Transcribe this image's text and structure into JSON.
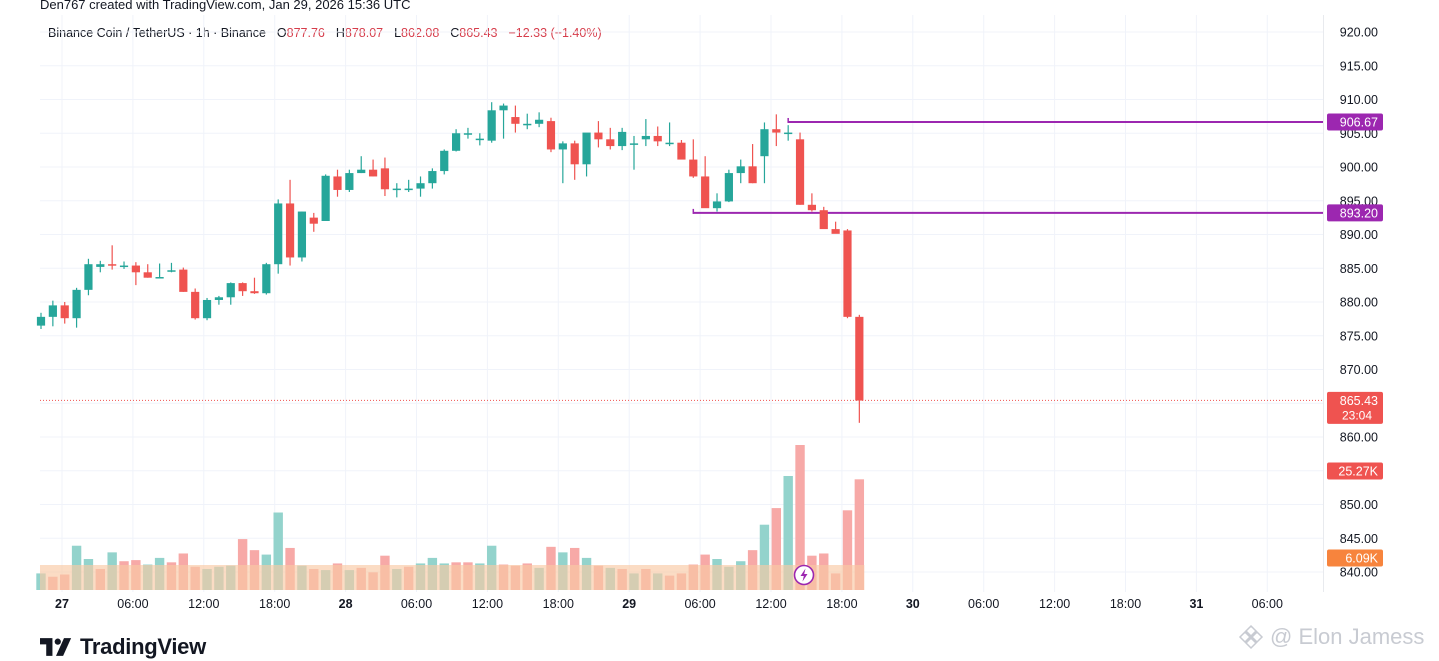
{
  "header": {
    "credit": "Den767 created with TradingView.com, Jan 29, 2026 15:36 UTC"
  },
  "legend": {
    "symbol": "Binance Coin / TetherUS · 1h · Binance",
    "o_label": "O",
    "o": "877.76",
    "h_label": "H",
    "h": "878.07",
    "l_label": "L",
    "l": "862.08",
    "c_label": "C",
    "c": "865.43",
    "change": "−12.33 (−1.40%)"
  },
  "logo": {
    "text": "TradingView",
    "icon": "tradingview-logo-icon"
  },
  "watermark": {
    "text": "@ Elon Jamess",
    "icon": "binance-square-icon"
  },
  "colors": {
    "up": "#26a69a",
    "down": "#ef5350",
    "hline": "#9c27b0",
    "volume_label": "#f7843d"
  },
  "chart_data": {
    "type": "candlestick",
    "title": "Binance Coin / TetherUS · 1h · Binance",
    "ylim": [
      838,
      922
    ],
    "y_ticks": [
      "840.00",
      "845.00",
      "850.00",
      "855.00",
      "860.00",
      "865.00",
      "870.00",
      "875.00",
      "880.00",
      "885.00",
      "890.00",
      "895.00",
      "900.00",
      "905.00",
      "910.00",
      "915.00",
      "920.00"
    ],
    "x_ticks": [
      "27",
      "06:00",
      "12:00",
      "18:00",
      "28",
      "06:00",
      "12:00",
      "18:00",
      "29",
      "06:00",
      "12:00",
      "18:00",
      "30",
      "06:00",
      "12:00",
      "18:00",
      "31",
      "06:00"
    ],
    "candles_ohlc": [
      [
        876.5,
        878.4,
        876.0,
        877.8
      ],
      [
        877.8,
        880.2,
        876.4,
        879.5
      ],
      [
        879.5,
        880.0,
        876.8,
        877.6
      ],
      [
        877.6,
        882.1,
        876.2,
        881.8
      ],
      [
        881.8,
        886.4,
        881.0,
        885.6
      ],
      [
        885.2,
        886.1,
        884.4,
        885.6
      ],
      [
        885.6,
        888.4,
        884.8,
        885.4
      ],
      [
        885.4,
        886.0,
        884.9,
        885.4
      ],
      [
        885.4,
        885.9,
        882.5,
        884.4
      ],
      [
        884.4,
        885.6,
        883.6,
        883.6
      ],
      [
        883.6,
        885.7,
        883.6,
        883.7
      ],
      [
        884.7,
        885.8,
        884.4,
        884.7
      ],
      [
        884.8,
        885.1,
        881.5,
        881.5
      ],
      [
        881.5,
        882.0,
        877.4,
        877.6
      ],
      [
        877.6,
        880.6,
        877.3,
        880.3
      ],
      [
        880.3,
        880.9,
        879.6,
        880.7
      ],
      [
        880.7,
        882.9,
        879.6,
        882.8
      ],
      [
        882.8,
        882.9,
        880.9,
        881.6
      ],
      [
        881.6,
        883.6,
        881.2,
        881.3
      ],
      [
        881.3,
        885.8,
        881.1,
        885.6
      ],
      [
        885.6,
        895.2,
        884.2,
        894.6
      ],
      [
        894.6,
        898.1,
        885.4,
        886.6
      ],
      [
        886.6,
        893.4,
        886.0,
        893.4
      ],
      [
        892.5,
        893.2,
        890.4,
        891.6
      ],
      [
        892.0,
        898.9,
        892.0,
        898.7
      ],
      [
        898.6,
        899.6,
        895.6,
        896.6
      ],
      [
        896.6,
        899.6,
        896.3,
        899.1
      ],
      [
        899.1,
        901.6,
        899.1,
        899.6
      ],
      [
        899.6,
        901.1,
        898.6,
        898.6
      ],
      [
        899.8,
        901.4,
        895.7,
        896.7
      ],
      [
        896.7,
        897.6,
        895.5,
        896.8
      ],
      [
        896.8,
        898.1,
        896.3,
        896.8
      ],
      [
        896.8,
        898.6,
        895.6,
        897.6
      ],
      [
        897.6,
        899.8,
        896.8,
        899.4
      ],
      [
        899.4,
        902.6,
        898.9,
        902.4
      ],
      [
        902.4,
        905.6,
        902.3,
        905.0
      ],
      [
        905.0,
        905.8,
        904.2,
        905.0
      ],
      [
        904.2,
        905.0,
        903.2,
        904.2
      ],
      [
        903.9,
        909.6,
        903.6,
        908.4
      ],
      [
        908.4,
        909.4,
        904.2,
        909.1
      ],
      [
        907.4,
        909.1,
        905.1,
        906.4
      ],
      [
        906.4,
        907.9,
        905.6,
        906.4
      ],
      [
        906.4,
        908.1,
        905.9,
        907.0
      ],
      [
        906.8,
        907.3,
        902.2,
        902.6
      ],
      [
        902.6,
        903.8,
        897.6,
        903.5
      ],
      [
        903.5,
        903.9,
        898.1,
        900.4
      ],
      [
        900.4,
        903.6,
        898.6,
        905.1
      ],
      [
        905.1,
        906.8,
        902.9,
        904.1
      ],
      [
        904.1,
        905.8,
        902.6,
        903.1
      ],
      [
        903.1,
        905.8,
        902.5,
        905.2
      ],
      [
        903.3,
        904.6,
        899.6,
        903.5
      ],
      [
        904.1,
        907.1,
        903.1,
        904.6
      ],
      [
        904.6,
        906.0,
        903.1,
        903.8
      ],
      [
        903.6,
        906.6,
        903.1,
        903.6
      ],
      [
        903.6,
        904.0,
        902.2,
        901.1
      ],
      [
        901.1,
        904.1,
        898.4,
        898.6
      ],
      [
        898.6,
        901.6,
        895.6,
        893.9
      ],
      [
        893.9,
        896.1,
        893.4,
        894.9
      ],
      [
        894.9,
        899.6,
        894.8,
        899.1
      ],
      [
        899.1,
        901.1,
        897.6,
        900.1
      ],
      [
        900.1,
        903.4,
        897.6,
        897.6
      ],
      [
        901.6,
        906.6,
        897.6,
        905.6
      ],
      [
        905.6,
        907.8,
        903.1,
        905.1
      ],
      [
        905.1,
        906.2,
        903.9,
        905.1
      ],
      [
        904.1,
        905.1,
        894.4,
        894.4
      ],
      [
        894.4,
        896.1,
        893.4,
        893.6
      ],
      [
        893.6,
        894.1,
        891.4,
        890.8
      ],
      [
        890.8,
        891.9,
        890.4,
        890.1
      ],
      [
        890.6,
        890.8,
        877.6,
        877.8
      ],
      [
        877.8,
        878.1,
        862.1,
        865.4
      ]
    ],
    "volume": [
      {
        "up": 1,
        "v": 1.5
      },
      {
        "up": 0,
        "v": 1.2
      },
      {
        "up": 0,
        "v": 1.4
      },
      {
        "up": 1,
        "v": 4.0
      },
      {
        "up": 1,
        "v": 2.8
      },
      {
        "up": 0,
        "v": 1.9
      },
      {
        "up": 1,
        "v": 3.4
      },
      {
        "up": 0,
        "v": 2.6
      },
      {
        "up": 0,
        "v": 2.7
      },
      {
        "up": 1,
        "v": 2.3
      },
      {
        "up": 1,
        "v": 2.9
      },
      {
        "up": 0,
        "v": 2.5
      },
      {
        "up": 0,
        "v": 3.3
      },
      {
        "up": 0,
        "v": 2.1
      },
      {
        "up": 1,
        "v": 1.9
      },
      {
        "up": 1,
        "v": 2.1
      },
      {
        "up": 1,
        "v": 2.2
      },
      {
        "up": 0,
        "v": 4.6
      },
      {
        "up": 0,
        "v": 3.6
      },
      {
        "up": 1,
        "v": 3.2
      },
      {
        "up": 1,
        "v": 7.0
      },
      {
        "up": 0,
        "v": 3.8
      },
      {
        "up": 1,
        "v": 2.2
      },
      {
        "up": 0,
        "v": 1.9
      },
      {
        "up": 1,
        "v": 1.8
      },
      {
        "up": 0,
        "v": 2.4
      },
      {
        "up": 1,
        "v": 1.8
      },
      {
        "up": 0,
        "v": 2.0
      },
      {
        "up": 0,
        "v": 1.6
      },
      {
        "up": 0,
        "v": 3.1
      },
      {
        "up": 1,
        "v": 1.9
      },
      {
        "up": 0,
        "v": 2.1
      },
      {
        "up": 1,
        "v": 2.4
      },
      {
        "up": 1,
        "v": 2.9
      },
      {
        "up": 1,
        "v": 2.4
      },
      {
        "up": 0,
        "v": 2.5
      },
      {
        "up": 0,
        "v": 2.5
      },
      {
        "up": 1,
        "v": 2.4
      },
      {
        "up": 1,
        "v": 4.0
      },
      {
        "up": 0,
        "v": 2.3
      },
      {
        "up": 0,
        "v": 2.2
      },
      {
        "up": 0,
        "v": 2.4
      },
      {
        "up": 1,
        "v": 2.0
      },
      {
        "up": 0,
        "v": 3.9
      },
      {
        "up": 1,
        "v": 3.4
      },
      {
        "up": 0,
        "v": 3.8
      },
      {
        "up": 1,
        "v": 2.9
      },
      {
        "up": 0,
        "v": 2.2
      },
      {
        "up": 1,
        "v": 2.0
      },
      {
        "up": 0,
        "v": 1.9
      },
      {
        "up": 1,
        "v": 1.5
      },
      {
        "up": 0,
        "v": 1.9
      },
      {
        "up": 1,
        "v": 1.5
      },
      {
        "up": 0,
        "v": 1.3
      },
      {
        "up": 0,
        "v": 1.5
      },
      {
        "up": 0,
        "v": 2.3
      },
      {
        "up": 0,
        "v": 3.2
      },
      {
        "up": 1,
        "v": 2.8
      },
      {
        "up": 1,
        "v": 2.1
      },
      {
        "up": 1,
        "v": 2.6
      },
      {
        "up": 0,
        "v": 3.6
      },
      {
        "up": 1,
        "v": 5.9
      },
      {
        "up": 0,
        "v": 7.4
      },
      {
        "up": 1,
        "v": 10.3
      },
      {
        "up": 0,
        "v": 13.1
      },
      {
        "up": 0,
        "v": 3.1
      },
      {
        "up": 0,
        "v": 3.3
      },
      {
        "up": 0,
        "v": 1.5
      },
      {
        "up": 0,
        "v": 7.2
      },
      {
        "up": 0,
        "v": 10.0
      }
    ],
    "volume_max": 13.1,
    "horizontal_lines": [
      {
        "value": 906.67,
        "label": "906.67",
        "start_candle": 63
      },
      {
        "value": 893.2,
        "label": "893.20",
        "start_candle": 55
      }
    ],
    "current_price": {
      "value": 865.43,
      "label": "865.43",
      "countdown": "23:04"
    },
    "volume_badge": {
      "label": "25.27K"
    },
    "ma_badge": {
      "label": "6.09K"
    },
    "grid": true,
    "theme": "light"
  }
}
